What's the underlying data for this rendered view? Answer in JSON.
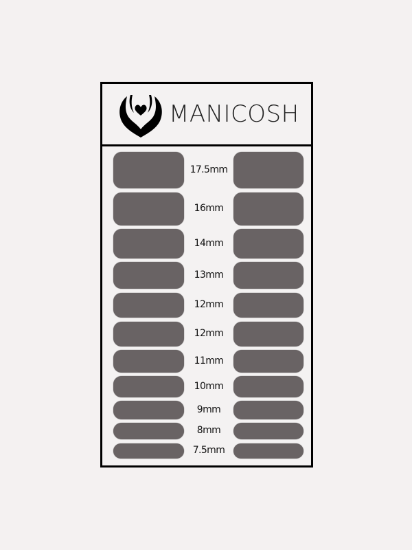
{
  "brand": {
    "name": "MANICOSH",
    "logo_icon": "hands-heart-logo-icon"
  },
  "colors": {
    "strip": "#696364",
    "frame": "#000000",
    "background": "#f4f1f1"
  },
  "sizes": [
    {
      "label": "17.5mm",
      "mm": 17.5
    },
    {
      "label": "16mm",
      "mm": 16
    },
    {
      "label": "14mm",
      "mm": 14
    },
    {
      "label": "13mm",
      "mm": 13
    },
    {
      "label": "12mm",
      "mm": 12
    },
    {
      "label": "12mm",
      "mm": 12
    },
    {
      "label": "11mm",
      "mm": 11
    },
    {
      "label": "10mm",
      "mm": 10
    },
    {
      "label": "9mm",
      "mm": 9
    },
    {
      "label": "8mm",
      "mm": 8
    },
    {
      "label": "7.5mm",
      "mm": 7.5
    }
  ]
}
